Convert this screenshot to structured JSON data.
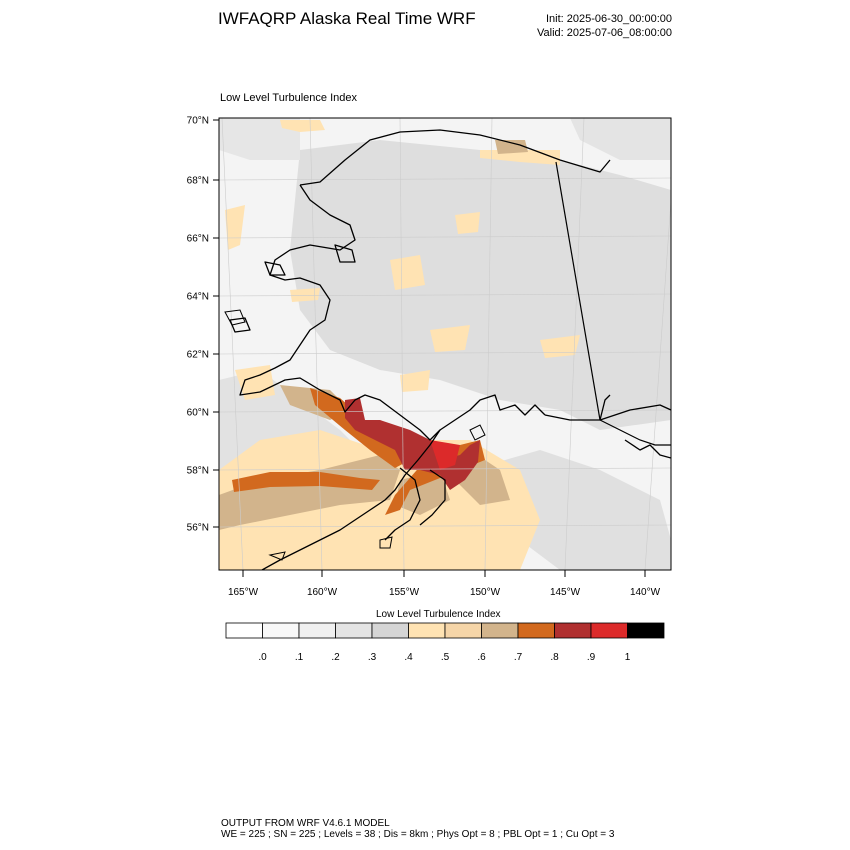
{
  "header": {
    "title": "IWFAQRP Alaska Real Time WRF",
    "init": "Init: 2025-06-30_00:00:00",
    "valid": "Valid: 2025-07-06_08:00:00"
  },
  "map": {
    "panel_title": "Low Level Turbulence Index",
    "lat_labels": [
      "70°N",
      "68°N",
      "66°N",
      "64°N",
      "62°N",
      "60°N",
      "58°N",
      "56°N"
    ],
    "lon_labels": [
      "165°W",
      "160°W",
      "155°W",
      "150°W",
      "145°W",
      "140°W"
    ],
    "region": "Alaska",
    "colors": {
      "land_background": "#f3f3f3",
      "low_index": "#dcdcdc",
      "mid_index": "#ffe3b3",
      "upper_index": "#d2b48c",
      "high_index": "#d2691e",
      "very_high_index": "#b03030"
    }
  },
  "colorbar": {
    "title": "Low Level Turbulence Index",
    "labels": [
      ".0",
      ".1",
      ".2",
      ".3",
      ".4",
      ".5",
      ".6",
      ".7",
      ".8",
      ".9",
      "1"
    ],
    "colors": [
      "#ffffff",
      "#f8f8f8",
      "#f0f0f0",
      "#e4e4e4",
      "#d5d5d5",
      "#ffe3b3",
      "#f5d5a8",
      "#d2b48c",
      "#d2691e",
      "#b03030",
      "#dc2a2a",
      "#000000"
    ]
  },
  "footer": {
    "line1": "OUTPUT FROM WRF V4.6.1 MODEL",
    "line2": "WE = 225 ; SN = 225 ; Levels = 38 ; Dis = 8km ; Phys Opt = 8 ; PBL Opt = 1 ; Cu Opt = 3"
  }
}
